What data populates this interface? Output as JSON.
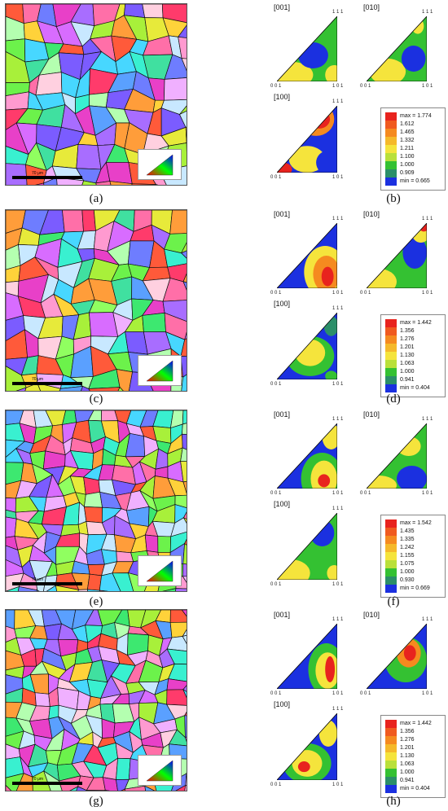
{
  "panel_labels": [
    "(a)",
    "(b)",
    "(c)",
    "(d)",
    "(e)",
    "(f)",
    "(g)",
    "(h)"
  ],
  "scale_bar_text": "70 μm",
  "map_inset_corners": {
    "c001": "0 0 1",
    "c101": "1 0 1",
    "c111": "1 1 1"
  },
  "ipf_titles": {
    "t001": "[001]",
    "t010": "[010]",
    "t100": "[100]"
  },
  "ipf_corners": {
    "top": "1 1 1",
    "left": "0 0 1",
    "right": "1 0 1"
  },
  "colors": {
    "red": "#e8231e",
    "orange": "#f58a1f",
    "yellow": "#f5e43c",
    "yellow_green": "#b9e03a",
    "green": "#34c132",
    "dark_green": "#1b9b2e",
    "teal": "#2b8f69",
    "blue": "#1b30e0"
  },
  "colorbars": [
    {
      "labels": [
        "max = 1.774",
        "1.612",
        "1.465",
        "1.332",
        "1.211",
        "1.100",
        "1.000",
        "0.909",
        "min = 0.665"
      ]
    },
    {
      "labels": [
        "max = 1.442",
        "1.356",
        "1.276",
        "1.201",
        "1.130",
        "1.063",
        "1.000",
        "0.941",
        "min = 0.404"
      ]
    },
    {
      "labels": [
        "max = 1.542",
        "1.435",
        "1.335",
        "1.242",
        "1.155",
        "1.075",
        "1.000",
        "0.930",
        "min = 0.669"
      ]
    },
    {
      "labels": [
        "max = 1.442",
        "1.356",
        "1.276",
        "1.201",
        "1.130",
        "1.063",
        "1.000",
        "0.941",
        "min = 0.404"
      ]
    }
  ],
  "colorbar_swatch_colors": [
    "#e8231e",
    "#f05a1f",
    "#f58a1f",
    "#f5b92a",
    "#f5e43c",
    "#b9e03a",
    "#34c132",
    "#2b8f69",
    "#1b30e0"
  ]
}
